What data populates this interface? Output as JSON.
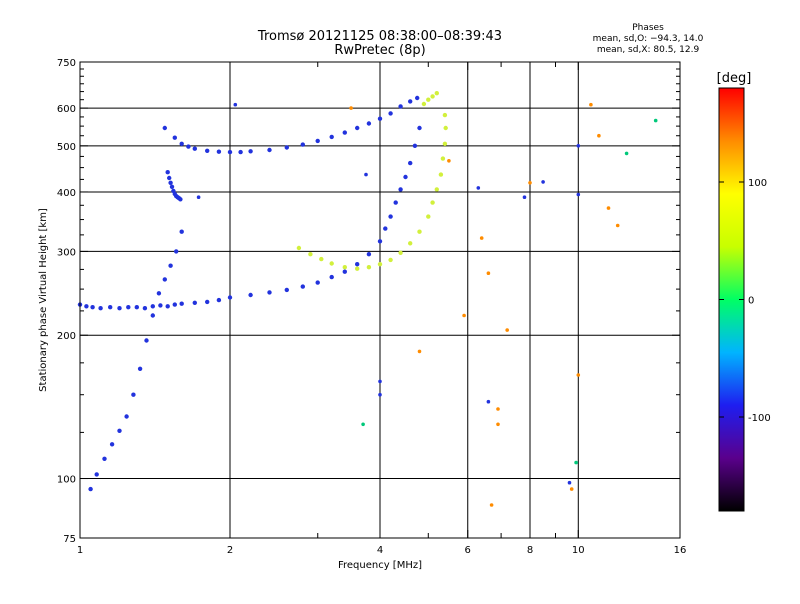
{
  "chart_data": {
    "type": "scatter",
    "title": "Tromsø 20121125 08:38:00–08:39:43",
    "subtitle": "RwPretec (8p)",
    "stats": {
      "heading": "Phases",
      "line1": "mean, sd,O: −94.3, 14.0",
      "line2": "mean, sd,X:  80.5, 12.9"
    },
    "xlabel": "Frequency [MHz]",
    "ylabel": "Stationary phase Virtual Height [km]",
    "x_scale": "log",
    "y_scale": "log",
    "xlim": [
      1,
      16
    ],
    "ylim": [
      75,
      750
    ],
    "x_ticks": [
      1,
      2,
      4,
      6,
      8,
      10,
      16
    ],
    "x_tick_labels": [
      "1",
      "2",
      "4",
      "6",
      "8",
      "10",
      "16"
    ],
    "x_minor_ticks": [
      3,
      5,
      7,
      9
    ],
    "x_grid": [
      2,
      4,
      6,
      8,
      10
    ],
    "y_ticks": [
      75,
      100,
      200,
      300,
      400,
      500,
      600,
      750
    ],
    "y_tick_labels": [
      "75",
      "100",
      "200",
      "300",
      "400",
      "500",
      "600",
      "750"
    ],
    "y_grid": [
      100,
      200,
      300,
      400,
      500,
      600
    ],
    "y_minor_ticks": [
      125,
      150,
      175,
      225,
      250,
      275,
      325,
      350,
      375,
      425,
      450,
      475,
      525,
      550,
      575,
      625,
      650,
      675,
      700,
      725
    ],
    "grid": true,
    "colorbar": {
      "label": "[deg]",
      "range": [
        -180,
        180
      ],
      "ticks": [
        100,
        0,
        -100
      ],
      "tick_labels": [
        "100",
        "0",
        "-100"
      ],
      "palette": [
        "#000000",
        "#5a008c",
        "#1e1ef0",
        "#00b4ff",
        "#00ff64",
        "#c8ff00",
        "#ffff00",
        "#ff8c00",
        "#ff0000"
      ]
    },
    "series": [
      {
        "mode": "O",
        "color": "#2233dd",
        "x": [
          1.0,
          1.03,
          1.06,
          1.1,
          1.15,
          1.2,
          1.25,
          1.3,
          1.35,
          1.4,
          1.45,
          1.5,
          1.55,
          1.6,
          1.7,
          1.8,
          1.9,
          2.0,
          2.2,
          2.4,
          2.6,
          2.8,
          3.0,
          3.2,
          3.4,
          3.6,
          3.8,
          4.0,
          4.1,
          4.2,
          4.3,
          4.4,
          4.5,
          4.6,
          4.7,
          4.8
        ],
        "y": [
          232,
          230,
          229,
          228,
          229,
          228,
          229,
          229,
          228,
          230,
          231,
          230,
          232,
          233,
          234,
          235,
          237,
          240,
          243,
          246,
          249,
          253,
          258,
          265,
          272,
          282,
          296,
          315,
          335,
          355,
          380,
          405,
          430,
          460,
          500,
          545
        ]
      },
      {
        "mode": "O",
        "color": "#2233dd",
        "x": [
          1.48,
          1.55,
          1.6,
          1.65,
          1.7,
          1.8,
          1.9,
          2.0,
          2.1,
          2.2,
          2.4,
          2.6,
          2.8,
          3.0,
          3.2,
          3.4,
          3.6,
          3.8,
          4.0,
          4.2,
          4.4,
          4.6,
          4.75
        ],
        "y": [
          545,
          520,
          505,
          498,
          493,
          488,
          486,
          485,
          485,
          487,
          490,
          496,
          503,
          512,
          522,
          533,
          545,
          557,
          570,
          585,
          605,
          620,
          630
        ]
      },
      {
        "mode": "O",
        "color": "#2233dd",
        "x": [
          1.05,
          1.08,
          1.12,
          1.16,
          1.2,
          1.24,
          1.28,
          1.32,
          1.36,
          1.4,
          1.44,
          1.48,
          1.52,
          1.56,
          1.6
        ],
        "y": [
          95,
          102,
          110,
          118,
          126,
          135,
          150,
          170,
          195,
          220,
          245,
          262,
          280,
          300,
          330
        ]
      },
      {
        "mode": "O",
        "color": "#2233dd",
        "x": [
          1.5,
          1.51,
          1.52,
          1.53,
          1.54,
          1.55,
          1.56,
          1.57,
          1.58,
          1.59
        ],
        "y": [
          440,
          428,
          418,
          410,
          402,
          396,
          392,
          390,
          388,
          386
        ]
      },
      {
        "mode": "X",
        "color": "#d2f03c",
        "x": [
          2.75,
          2.9,
          3.05,
          3.2,
          3.4,
          3.6,
          3.8,
          4.0,
          4.2,
          4.4,
          4.6,
          4.8,
          5.0,
          5.1,
          5.2,
          5.3,
          5.35,
          5.4,
          5.42,
          5.4
        ],
        "y": [
          305,
          296,
          289,
          283,
          278,
          276,
          278,
          282,
          288,
          298,
          312,
          330,
          355,
          380,
          405,
          435,
          470,
          505,
          545,
          580
        ]
      },
      {
        "mode": "X",
        "color": "#d2f03c",
        "x": [
          4.9,
          5.0,
          5.1,
          5.2
        ],
        "y": [
          612,
          625,
          635,
          645
        ]
      },
      {
        "mode": "scattered",
        "color": "#ff8c00",
        "x": [
          5.9,
          6.4,
          6.6,
          6.9,
          7.2,
          8.0,
          10.6,
          11.0,
          11.5,
          12.0,
          9.7,
          5.5,
          3.5,
          4.8,
          6.7,
          6.9,
          10.0
        ],
        "y": [
          220,
          320,
          270,
          130,
          205,
          418,
          610,
          525,
          370,
          340,
          95,
          465,
          600,
          185,
          88,
          140,
          165
        ]
      },
      {
        "mode": "scattered",
        "color": "#2233dd",
        "x": [
          6.3,
          6.6,
          7.8,
          8.5,
          10.0,
          10.0,
          9.6,
          3.75,
          4.0,
          4.0,
          2.05,
          1.73
        ],
        "y": [
          408,
          145,
          390,
          420,
          395,
          500,
          98,
          435,
          160,
          150,
          610,
          390
        ]
      },
      {
        "mode": "scattered",
        "color": "#00c87a",
        "x": [
          3.7,
          9.9,
          12.5,
          14.3
        ],
        "y": [
          130,
          108,
          482,
          565
        ]
      }
    ]
  }
}
